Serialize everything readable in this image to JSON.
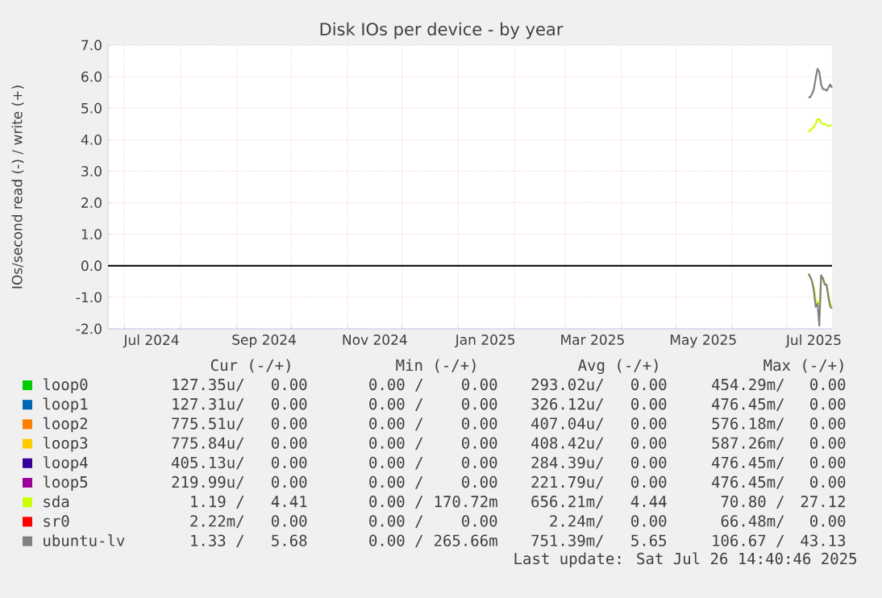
{
  "chart_data": {
    "type": "line",
    "title": "Disk IOs per device - by year",
    "ylabel": "IOs/second read (-) / write (+)",
    "x": [
      "2025-07-13",
      "2025-07-14",
      "2025-07-15",
      "2025-07-16",
      "2025-07-17",
      "2025-07-18",
      "2025-07-19",
      "2025-07-20",
      "2025-07-21",
      "2025-07-22",
      "2025-07-23",
      "2025-07-24",
      "2025-07-25",
      "2025-07-26"
    ],
    "xlim": [
      "2024-06-22",
      "2025-07-26"
    ],
    "xticks": [
      {
        "value": "2024-07-01",
        "label": null
      },
      {
        "value": "2024-08-01",
        "label": null
      },
      {
        "value": "2024-09-01",
        "label": null
      },
      {
        "value": "2024-10-01",
        "label": null
      },
      {
        "value": "2024-11-01",
        "label": null
      },
      {
        "value": "2024-12-01",
        "label": null
      },
      {
        "value": "2025-01-01",
        "label": null
      },
      {
        "value": "2025-02-01",
        "label": null
      },
      {
        "value": "2025-03-01",
        "label": null
      },
      {
        "value": "2025-04-01",
        "label": null
      },
      {
        "value": "2025-05-01",
        "label": null
      },
      {
        "value": "2025-06-01",
        "label": null
      },
      {
        "value": "2025-07-01",
        "label": null
      },
      {
        "value": "2024-07-16",
        "label": "Jul 2024"
      },
      {
        "value": "2024-09-16",
        "label": "Sep 2024"
      },
      {
        "value": "2024-11-16",
        "label": "Nov 2024"
      },
      {
        "value": "2025-01-16",
        "label": "Jan 2025"
      },
      {
        "value": "2025-03-16",
        "label": "Mar 2025"
      },
      {
        "value": "2025-05-16",
        "label": "May 2025"
      },
      {
        "value": "2025-07-16",
        "label": "Jul 2025"
      }
    ],
    "ylim": [
      -2,
      7
    ],
    "yticks": [
      {
        "value": -2,
        "label": "-2.0"
      },
      {
        "value": -1,
        "label": "-1.0"
      },
      {
        "value": 0,
        "label": "0.0"
      },
      {
        "value": 1,
        "label": "1.0"
      },
      {
        "value": 2,
        "label": "2.0"
      },
      {
        "value": 3,
        "label": "3.0"
      },
      {
        "value": 4,
        "label": "4.0"
      },
      {
        "value": 5,
        "label": "5.0"
      },
      {
        "value": 6,
        "label": "6.0"
      },
      {
        "value": 7,
        "label": "7.0"
      }
    ],
    "grid": true,
    "legend": "bottom",
    "ref_lines": [
      {
        "axis": "y",
        "value": 0,
        "color": "#000000"
      }
    ],
    "series": [
      {
        "name": "loop0",
        "color": "#00cc00",
        "values": [
          null,
          null,
          null,
          null,
          null,
          null,
          null,
          null,
          null,
          null,
          null,
          null,
          null,
          null
        ]
      },
      {
        "name": "loop1",
        "color": "#0066b3",
        "values": [
          null,
          null,
          null,
          null,
          null,
          null,
          null,
          null,
          null,
          null,
          null,
          null,
          null,
          null
        ]
      },
      {
        "name": "loop2",
        "color": "#ff8000",
        "values": [
          null,
          null,
          null,
          null,
          null,
          null,
          null,
          null,
          null,
          null,
          null,
          null,
          null,
          null
        ]
      },
      {
        "name": "loop3",
        "color": "#ffcc00",
        "values": [
          null,
          null,
          null,
          null,
          null,
          null,
          null,
          null,
          null,
          null,
          null,
          null,
          null,
          null
        ]
      },
      {
        "name": "loop4",
        "color": "#330099",
        "values": [
          null,
          null,
          null,
          null,
          null,
          null,
          null,
          null,
          null,
          null,
          null,
          null,
          null,
          null
        ]
      },
      {
        "name": "loop5",
        "color": "#990099",
        "values": [
          null,
          null,
          null,
          null,
          null,
          null,
          null,
          null,
          null,
          null,
          null,
          null,
          null,
          null
        ]
      },
      {
        "name": "sda",
        "color": "#ccff00",
        "values": [
          4.25,
          4.3,
          4.35,
          4.4,
          4.5,
          4.65,
          4.65,
          4.55,
          4.5,
          4.5,
          4.45,
          4.45,
          4.45,
          4.45
        ]
      },
      {
        "name": "sr0",
        "color": "#ff0000",
        "values": [
          null,
          null,
          null,
          null,
          null,
          null,
          null,
          null,
          null,
          null,
          null,
          null,
          null,
          null
        ]
      },
      {
        "name": "ubuntu-lv",
        "color": "#808080",
        "values": [
          5.35,
          5.35,
          5.45,
          5.6,
          5.95,
          6.25,
          6.15,
          5.75,
          5.6,
          5.6,
          5.55,
          5.65,
          5.75,
          5.65
        ]
      },
      {
        "color": "#ccff00",
        "values": [
          -0.3,
          -0.35,
          -0.5,
          -0.7,
          -1.1,
          -1.15,
          -1.3,
          -0.35,
          -0.4,
          -0.55,
          -0.6,
          -0.9,
          -1.2,
          -1.3
        ]
      },
      {
        "color": "#808080",
        "values": [
          -0.25,
          -0.35,
          -0.5,
          -0.8,
          -1.3,
          -1.2,
          -1.9,
          -0.3,
          -0.4,
          -0.6,
          -0.6,
          -1.0,
          -1.3,
          -1.35
        ]
      }
    ],
    "annotations": [
      "Cur (-/+)",
      "Min (-/+)",
      "Avg (-/+)",
      "Max (-/+)",
      "127.35u/",
      "0.00",
      "0.00 /",
      "0.00",
      "293.02u/",
      "0.00",
      "454.29m/",
      "0.00",
      "127.31u/",
      "0.00",
      "0.00 /",
      "0.00",
      "326.12u/",
      "0.00",
      "476.45m/",
      "0.00",
      "775.51u/",
      "0.00",
      "0.00 /",
      "0.00",
      "407.04u/",
      "0.00",
      "576.18m/",
      "0.00",
      "775.84u/",
      "0.00",
      "0.00 /",
      "0.00",
      "408.42u/",
      "0.00",
      "587.26m/",
      "0.00",
      "405.13u/",
      "0.00",
      "0.00 /",
      "0.00",
      "284.39u/",
      "0.00",
      "476.45m/",
      "0.00",
      "219.99u/",
      "0.00",
      "0.00 /",
      "0.00",
      "221.79u/",
      "0.00",
      "476.45m/",
      "0.00",
      "1.19 /",
      "4.41",
      "0.00 /",
      "170.72m",
      "656.21m/",
      "4.44",
      "70.80 /",
      "27.12",
      "2.22m/",
      "0.00",
      "0.00 /",
      "0.00",
      "2.24m/",
      "0.00",
      "66.48m/",
      "0.00",
      "1.33 /",
      "5.68",
      "0.00 /",
      "265.66m",
      "751.39m/",
      "5.65",
      "106.67 /",
      "43.13",
      "Last update: Sat Jul 26 14:40:46 2025"
    ]
  }
}
